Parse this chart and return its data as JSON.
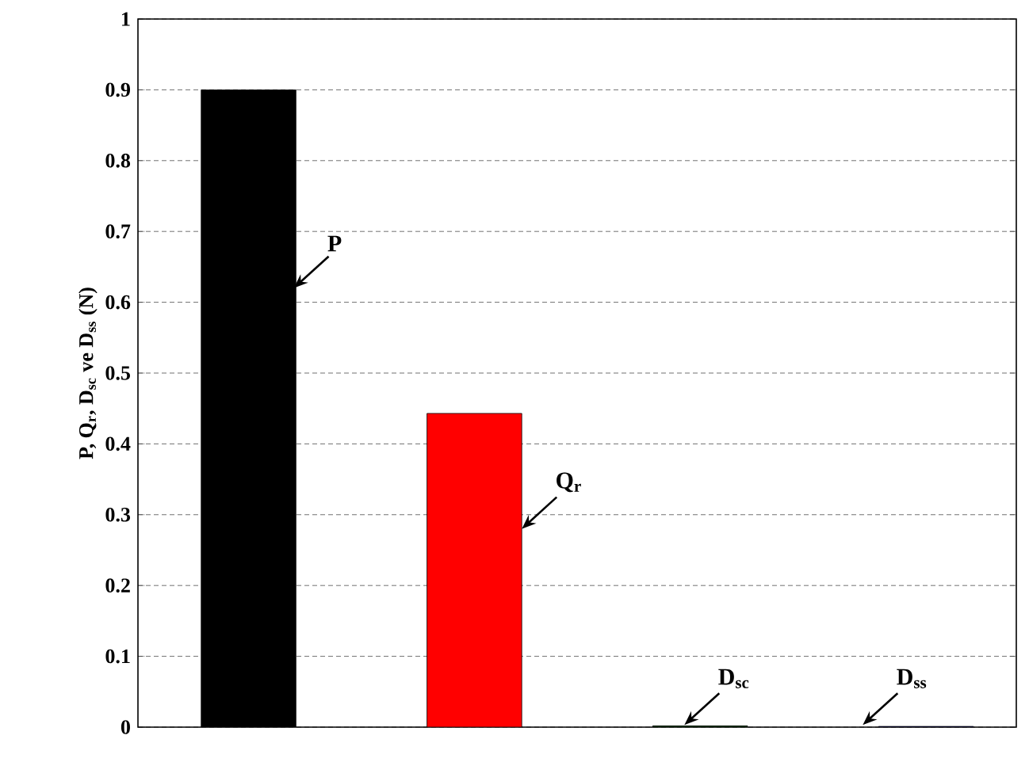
{
  "chart_data": {
    "type": "bar",
    "ylabel": "P, Q$_{r}$, D$_{sc}$ ve D$_{ss}$ (N)",
    "categories": [
      null,
      null,
      null,
      null
    ],
    "values": [
      0.9,
      0.443,
      0.002,
      0.001
    ],
    "colors": [
      "#000000",
      "#ff0000",
      "#003300",
      "#000066"
    ],
    "ylim": [
      0,
      1
    ],
    "yticks": [
      0,
      0.1,
      0.2,
      0.3,
      0.4,
      0.5,
      0.6,
      0.7,
      0.8,
      0.9,
      1
    ],
    "grid": "y",
    "tick_labels": "y",
    "annotations": [
      "P",
      "Q$_{r}$",
      "D$_{sc}$",
      "D$_{ss}$"
    ]
  }
}
